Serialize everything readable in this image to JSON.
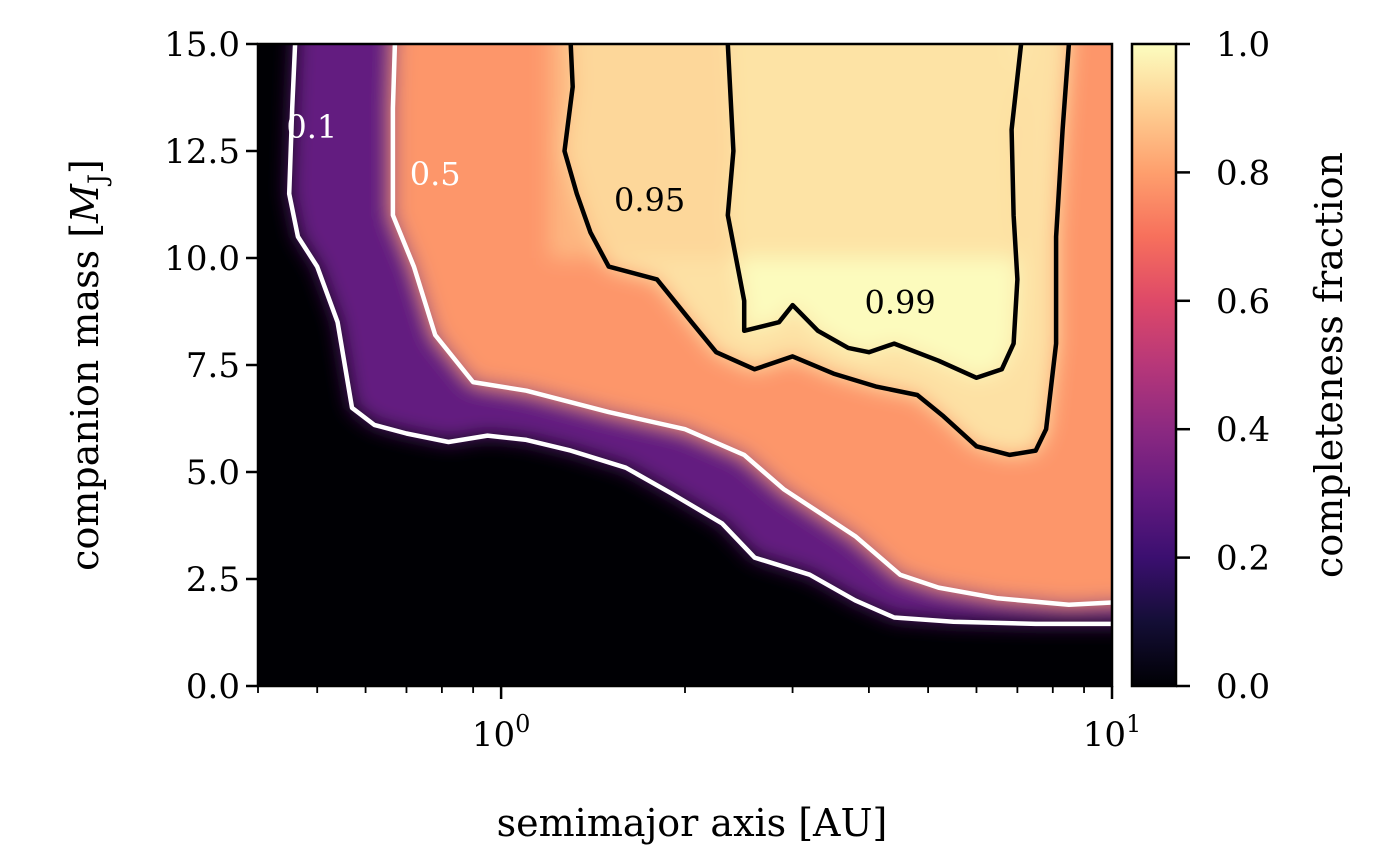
{
  "chart_data": {
    "type": "heatmap",
    "subtype": "filled contour with contour lines, log x-axis",
    "xlabel": "semimajor axis [AU]",
    "ylabel": "companion mass [M_J]",
    "ylabel_parts": {
      "main": "companion mass ",
      "open": "[",
      "sym": "M",
      "sub": "J",
      "close": "]"
    },
    "colorbar_label": "completeness fraction",
    "colormap": "magma",
    "xscale": "log",
    "xlim": [
      0.4,
      10
    ],
    "ylim": [
      0,
      15
    ],
    "x_ticks": [
      {
        "value": 1,
        "base": "10",
        "exp": "0"
      },
      {
        "value": 10,
        "base": "10",
        "exp": "1"
      }
    ],
    "y_ticks": [
      {
        "value": 0,
        "label": "0.0"
      },
      {
        "value": 2.5,
        "label": "2.5"
      },
      {
        "value": 5,
        "label": "5.0"
      },
      {
        "value": 7.5,
        "label": "7.5"
      },
      {
        "value": 10,
        "label": "10.0"
      },
      {
        "value": 12.5,
        "label": "12.5"
      },
      {
        "value": 15,
        "label": "15.0"
      }
    ],
    "colorbar_ticks": [
      {
        "value": 0.0,
        "label": "0.0"
      },
      {
        "value": 0.2,
        "label": "0.2"
      },
      {
        "value": 0.4,
        "label": "0.4"
      },
      {
        "value": 0.6,
        "label": "0.6"
      },
      {
        "value": 0.8,
        "label": "0.8"
      },
      {
        "value": 1.0,
        "label": "1.0"
      }
    ],
    "colorbar_range": [
      0,
      1
    ],
    "contours": [
      {
        "level": 0.1,
        "label": "0.1",
        "color": "#ffffff",
        "label_at": [
          0.49,
          12.8
        ],
        "points": [
          [
            0.46,
            15
          ],
          [
            0.455,
            13.5
          ],
          [
            0.45,
            11.5
          ],
          [
            0.465,
            10.5
          ],
          [
            0.5,
            9.8
          ],
          [
            0.54,
            8.5
          ],
          [
            0.57,
            6.5
          ],
          [
            0.62,
            6.1
          ],
          [
            0.7,
            5.9
          ],
          [
            0.82,
            5.7
          ],
          [
            0.95,
            5.85
          ],
          [
            1.1,
            5.75
          ],
          [
            1.3,
            5.5
          ],
          [
            1.6,
            5.1
          ],
          [
            1.9,
            4.5
          ],
          [
            2.3,
            3.8
          ],
          [
            2.6,
            3.0
          ],
          [
            3.2,
            2.6
          ],
          [
            3.8,
            2.0
          ],
          [
            4.4,
            1.6
          ],
          [
            5.5,
            1.5
          ],
          [
            7.5,
            1.45
          ],
          [
            10,
            1.45
          ]
        ]
      },
      {
        "level": 0.5,
        "label": "0.5",
        "color": "#ffffff",
        "label_at": [
          0.78,
          11.7
        ],
        "points": [
          [
            0.67,
            15
          ],
          [
            0.665,
            13.5
          ],
          [
            0.665,
            11.0
          ],
          [
            0.72,
            9.8
          ],
          [
            0.78,
            8.2
          ],
          [
            0.9,
            7.1
          ],
          [
            1.1,
            6.9
          ],
          [
            1.5,
            6.4
          ],
          [
            2.0,
            6.0
          ],
          [
            2.5,
            5.4
          ],
          [
            2.9,
            4.6
          ],
          [
            3.2,
            4.2
          ],
          [
            3.8,
            3.5
          ],
          [
            4.5,
            2.6
          ],
          [
            5.2,
            2.3
          ],
          [
            6.5,
            2.05
          ],
          [
            8.5,
            1.9
          ],
          [
            10,
            1.95
          ]
        ]
      },
      {
        "level": 0.95,
        "label": "0.95",
        "color": "#000000",
        "label_at": [
          1.75,
          11.1
        ],
        "points": [
          [
            1.3,
            15
          ],
          [
            1.31,
            14.0
          ],
          [
            1.27,
            12.5
          ],
          [
            1.33,
            11.5
          ],
          [
            1.4,
            10.6
          ],
          [
            1.5,
            9.8
          ],
          [
            1.8,
            9.5
          ],
          [
            2.05,
            8.5
          ],
          [
            2.25,
            7.8
          ],
          [
            2.6,
            7.4
          ],
          [
            3.0,
            7.7
          ],
          [
            3.5,
            7.3
          ],
          [
            4.1,
            7.0
          ],
          [
            4.8,
            6.8
          ],
          [
            5.3,
            6.3
          ],
          [
            6.0,
            5.6
          ],
          [
            6.8,
            5.4
          ],
          [
            7.5,
            5.5
          ],
          [
            7.8,
            6.0
          ],
          [
            8.1,
            8.0
          ],
          [
            8.1,
            10.5
          ],
          [
            8.3,
            13.0
          ],
          [
            8.5,
            15
          ]
        ]
      },
      {
        "level": 0.99,
        "label": "0.99",
        "color": "#000000",
        "label_at": [
          4.5,
          8.7
        ],
        "points": [
          [
            2.35,
            15
          ],
          [
            2.4,
            12.5
          ],
          [
            2.35,
            11.0
          ],
          [
            2.5,
            9.0
          ],
          [
            2.5,
            8.3
          ],
          [
            2.85,
            8.5
          ],
          [
            3.0,
            8.9
          ],
          [
            3.3,
            8.3
          ],
          [
            3.7,
            7.9
          ],
          [
            4.0,
            7.8
          ],
          [
            4.4,
            8.0
          ],
          [
            5.2,
            7.6
          ],
          [
            6.0,
            7.2
          ],
          [
            6.6,
            7.4
          ],
          [
            6.9,
            8.0
          ],
          [
            7.0,
            9.5
          ],
          [
            6.9,
            11.0
          ],
          [
            6.85,
            13.0
          ],
          [
            7.1,
            15
          ]
        ]
      }
    ]
  }
}
